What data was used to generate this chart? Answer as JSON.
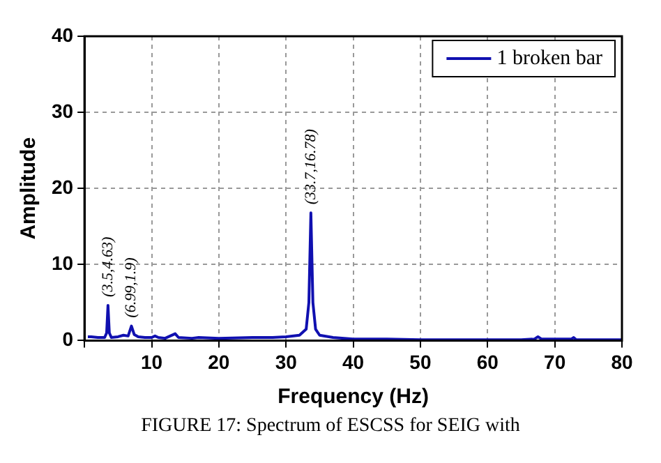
{
  "chart_data": {
    "type": "line",
    "xlabel": "Frequency (Hz)",
    "ylabel": "Amplitude",
    "x": [
      0.5,
      1,
      2,
      3,
      3.3,
      3.5,
      3.7,
      4,
      5,
      5.8,
      6.5,
      6.99,
      7.4,
      8,
      9,
      10,
      10.5,
      11,
      12,
      13.5,
      14,
      16,
      17,
      20,
      25,
      28,
      30,
      32,
      33,
      33.4,
      33.7,
      34,
      34.4,
      35,
      37,
      40,
      45,
      50,
      55,
      60,
      65,
      67,
      67.5,
      68,
      72.5,
      72.8,
      73.2,
      76,
      80
    ],
    "series": [
      {
        "name": "1 broken bar",
        "color": "#1010b0",
        "values": [
          0.5,
          0.5,
          0.4,
          0.4,
          1,
          4.63,
          1,
          0.4,
          0.5,
          0.7,
          0.6,
          1.9,
          0.8,
          0.5,
          0.4,
          0.4,
          0.6,
          0.4,
          0.3,
          0.9,
          0.4,
          0.3,
          0.4,
          0.3,
          0.4,
          0.4,
          0.5,
          0.7,
          1.5,
          5,
          16.78,
          5,
          1.5,
          0.7,
          0.4,
          0.2,
          0.2,
          0.1,
          0.1,
          0.1,
          0.1,
          0.2,
          0.5,
          0.2,
          0.2,
          0.4,
          0.1,
          0.1,
          0.1
        ]
      }
    ],
    "xlim": [
      0,
      80
    ],
    "xticks": [
      {
        "value": 0,
        "label": null
      },
      10,
      20,
      30,
      40,
      50,
      60,
      70,
      80
    ],
    "ylim": [
      0,
      40
    ],
    "yticks": [
      0,
      10,
      20,
      30,
      40
    ],
    "grid": true,
    "legend": "top right",
    "marker": "none",
    "line_style": "solid",
    "annotations": [
      {
        "text": "(3.5,4.63)",
        "x": 3.5,
        "y": 4.63
      },
      {
        "text": "(6.99,1.9)",
        "x": 6.99,
        "y": 1.9
      },
      {
        "text": "(33.7,16.78)",
        "x": 33.7,
        "y": 16.78
      },
      "FIGURE 17: Spectrum of ESCSS for SEIG with"
    ]
  }
}
